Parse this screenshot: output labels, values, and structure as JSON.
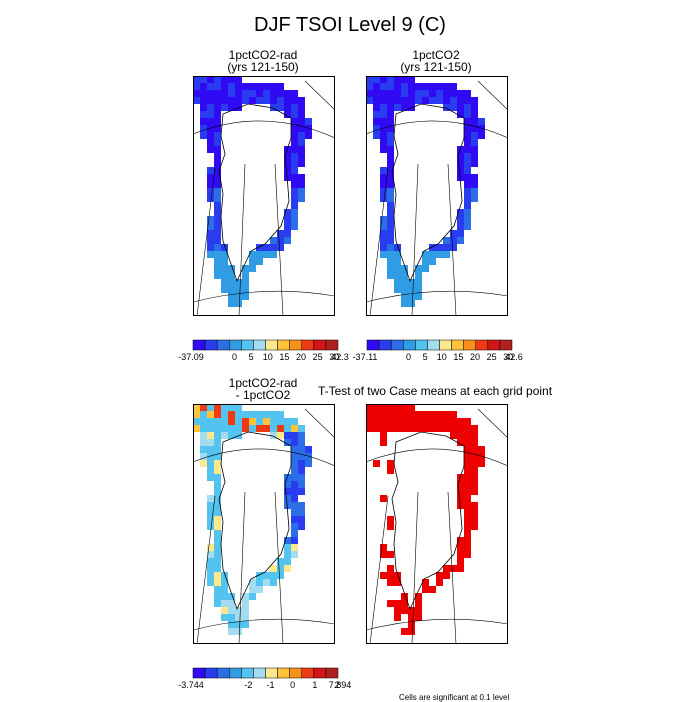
{
  "figure": {
    "title": "DJF TSOI Level 9 (C)",
    "footnote": "Cells are significant at 0.1 level"
  },
  "colors": {
    "scale_abs": [
      "#2f0af2",
      "#2a3cf0",
      "#2b6ee8",
      "#2f9ce4",
      "#53c3ef",
      "#a3dcf1",
      "#fde98c",
      "#fdc43a",
      "#f9901c",
      "#ee3a12",
      "#cf1515",
      "#b02020"
    ],
    "scale_diff": [
      "#2f0af2",
      "#2a3cf0",
      "#2b6ee8",
      "#2f9ce4",
      "#53c3ef",
      "#a3dcf1",
      "#fde98c",
      "#fdc43a",
      "#f9901c",
      "#ee3a12",
      "#cf1515",
      "#b02020"
    ],
    "significant": "#ee0000"
  },
  "chart_data": [
    {
      "type": "heatmap",
      "title_line1": "1pctCO2-rad",
      "title_line2": "(yrs 121-150)",
      "colorbar": {
        "min": "-37.09",
        "max": "42.3",
        "ticks": [
          "0",
          "5",
          "10",
          "15",
          "20",
          "25",
          "30"
        ]
      }
    },
    {
      "type": "heatmap",
      "title_line1": "1pctCO2",
      "title_line2": "(yrs 121-150)",
      "colorbar": {
        "min": "-37.11",
        "max": "42.6",
        "ticks": [
          "0",
          "5",
          "10",
          "15",
          "20",
          "25",
          "30"
        ]
      }
    },
    {
      "type": "heatmap",
      "title_line1": "1pctCO2-rad",
      "title_line2": "- 1pctCO2",
      "colorbar": {
        "min": "-3.744",
        "max": "7.894",
        "ticks": [
          "-2",
          "-1",
          "0",
          "1",
          "2"
        ]
      }
    },
    {
      "type": "heatmap",
      "title_line1": "T-Test of two Case means at each grid point",
      "title_line2": ""
    }
  ]
}
